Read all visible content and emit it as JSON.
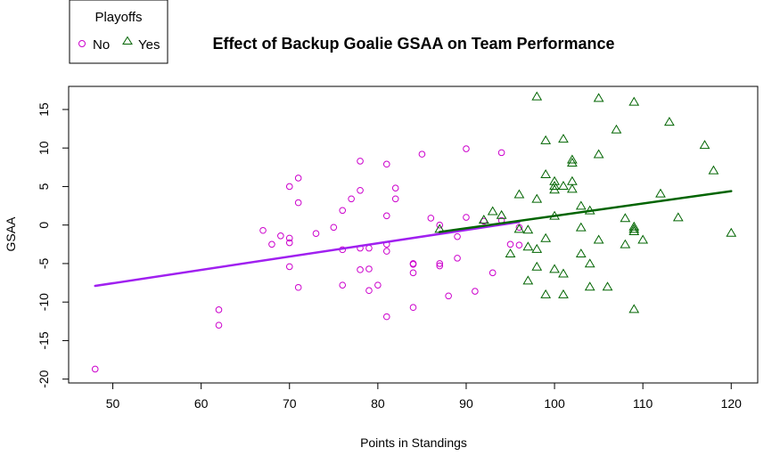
{
  "chart_data": {
    "type": "scatter",
    "title": "Effect of Backup Goalie GSAA on Team Performance",
    "xlabel": "Points in Standings",
    "ylabel": "GSAA",
    "xlim": [
      45,
      123
    ],
    "ylim": [
      -20.5,
      18
    ],
    "x_ticks": [
      50,
      60,
      70,
      80,
      90,
      100,
      110,
      120
    ],
    "y_ticks": [
      -20,
      -15,
      -10,
      -5,
      0,
      5,
      10,
      15
    ],
    "x_tick_labels": [
      "50",
      "60",
      "70",
      "80",
      "90",
      "100",
      "110",
      "120"
    ],
    "y_tick_labels": [
      "-20",
      "-15",
      "-10",
      "-5",
      "0",
      "5",
      "10",
      "15"
    ],
    "grid": false,
    "legend": {
      "title": "Playoffs",
      "position": "top-left",
      "entries": [
        "No",
        "Yes"
      ]
    },
    "series": [
      {
        "name": "No",
        "marker": "circle",
        "color": "#cc00cc",
        "points": [
          [
            48,
            -18.7
          ],
          [
            62,
            -11.0
          ],
          [
            62,
            -13.0
          ],
          [
            67,
            -0.7
          ],
          [
            68,
            -2.5
          ],
          [
            69,
            -1.4
          ],
          [
            70,
            5.0
          ],
          [
            70,
            -1.7
          ],
          [
            70,
            -2.3
          ],
          [
            70,
            -5.4
          ],
          [
            71,
            6.1
          ],
          [
            71,
            2.9
          ],
          [
            71,
            -8.1
          ],
          [
            73,
            -1.1
          ],
          [
            75,
            -0.3
          ],
          [
            76,
            1.9
          ],
          [
            76,
            -3.2
          ],
          [
            76,
            -7.8
          ],
          [
            77,
            3.4
          ],
          [
            78,
            8.3
          ],
          [
            78,
            4.5
          ],
          [
            78,
            -3.0
          ],
          [
            78,
            -5.8
          ],
          [
            79,
            -3.0
          ],
          [
            79,
            -5.7
          ],
          [
            79,
            -8.5
          ],
          [
            80,
            -7.8
          ],
          [
            81,
            7.9
          ],
          [
            81,
            1.2
          ],
          [
            81,
            -2.5
          ],
          [
            81,
            -3.4
          ],
          [
            81,
            -11.9
          ],
          [
            82,
            4.8
          ],
          [
            82,
            3.4
          ],
          [
            84,
            -5.0
          ],
          [
            84,
            -5.1
          ],
          [
            84,
            -6.2
          ],
          [
            84,
            -10.7
          ],
          [
            85,
            9.2
          ],
          [
            86,
            0.9
          ],
          [
            87,
            0.0
          ],
          [
            87,
            -5.0
          ],
          [
            87,
            -5.3
          ],
          [
            88,
            -9.2
          ],
          [
            89,
            -1.5
          ],
          [
            89,
            -4.3
          ],
          [
            90,
            9.9
          ],
          [
            90,
            1.0
          ],
          [
            91,
            -8.6
          ],
          [
            92,
            0.5
          ],
          [
            93,
            -6.2
          ],
          [
            94,
            9.4
          ],
          [
            94,
            0.6
          ],
          [
            95,
            -2.5
          ],
          [
            96,
            -0.3
          ],
          [
            96,
            -2.6
          ]
        ]
      },
      {
        "name": "Yes",
        "marker": "triangle",
        "color": "#006400",
        "points": [
          [
            87,
            -0.6
          ],
          [
            92,
            0.6
          ],
          [
            93,
            1.7
          ],
          [
            94,
            1.2
          ],
          [
            95,
            -3.8
          ],
          [
            96,
            3.9
          ],
          [
            96,
            -0.6
          ],
          [
            97,
            -0.7
          ],
          [
            97,
            -2.9
          ],
          [
            97,
            -7.3
          ],
          [
            98,
            16.6
          ],
          [
            98,
            3.3
          ],
          [
            98,
            -3.2
          ],
          [
            98,
            -5.5
          ],
          [
            99,
            10.9
          ],
          [
            99,
            6.5
          ],
          [
            99,
            -1.8
          ],
          [
            99,
            -9.1
          ],
          [
            100,
            5.6
          ],
          [
            100,
            5.0
          ],
          [
            100,
            4.5
          ],
          [
            100,
            1.1
          ],
          [
            100,
            -5.8
          ],
          [
            101,
            11.1
          ],
          [
            101,
            5.0
          ],
          [
            101,
            -6.4
          ],
          [
            101,
            -9.1
          ],
          [
            102,
            8.4
          ],
          [
            102,
            8.0
          ],
          [
            102,
            5.6
          ],
          [
            102,
            4.6
          ],
          [
            103,
            2.4
          ],
          [
            103,
            -0.4
          ],
          [
            103,
            -3.8
          ],
          [
            104,
            1.8
          ],
          [
            104,
            -5.1
          ],
          [
            104,
            -8.1
          ],
          [
            105,
            16.4
          ],
          [
            105,
            9.1
          ],
          [
            105,
            -2.0
          ],
          [
            106,
            -8.1
          ],
          [
            107,
            12.3
          ],
          [
            108,
            0.8
          ],
          [
            108,
            -2.6
          ],
          [
            109,
            15.9
          ],
          [
            109,
            -0.3
          ],
          [
            109,
            -0.6
          ],
          [
            109,
            -0.9
          ],
          [
            109,
            -11.0
          ],
          [
            110,
            -2.0
          ],
          [
            112,
            4.0
          ],
          [
            113,
            13.3
          ],
          [
            114,
            0.9
          ],
          [
            117,
            10.3
          ],
          [
            118,
            7.0
          ],
          [
            120,
            -1.1
          ]
        ]
      }
    ],
    "fit_lines": [
      {
        "name": "No",
        "color": "#a020f0",
        "x": [
          48,
          96
        ],
        "y": [
          -7.9,
          0.4
        ]
      },
      {
        "name": "Yes",
        "color": "#006400",
        "x": [
          87,
          120
        ],
        "y": [
          -0.9,
          4.4
        ]
      }
    ]
  }
}
